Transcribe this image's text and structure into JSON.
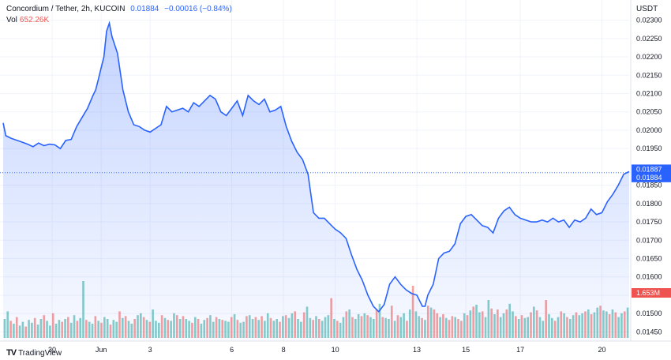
{
  "header": {
    "pair": "Concordium / Tether, 2h, KUCOIN",
    "price": "0.01884",
    "change": "−0.00016 (−0.84%)",
    "vol_label": "Vol",
    "vol_value": "652.26K"
  },
  "unit": "USDT",
  "brand": "TradingView",
  "colors": {
    "line": "#2962ff",
    "up_vol": "#26a69a",
    "down_vol": "#ef5350",
    "price_tag": "#2962ff",
    "vol_tag": "#ef5350"
  },
  "chart_data": {
    "type": "area",
    "y_ticks": [
      "0.02300",
      "0.02250",
      "0.02200",
      "0.02150",
      "0.02100",
      "0.02050",
      "0.02000",
      "0.01950",
      "0.01850",
      "0.01800",
      "0.01750",
      "0.01700",
      "0.01650",
      "0.01600",
      "0.01550",
      "0.01500",
      "0.01450"
    ],
    "ylim": [
      0.01425,
      0.02325
    ],
    "x_ticks": [
      "30",
      "Jun",
      "3",
      "6",
      "8",
      "10",
      "13",
      "15",
      "17",
      "20"
    ],
    "x_tick_pos": [
      1.8,
      3.6,
      5.4,
      8.4,
      10.3,
      12.2,
      15.2,
      17,
      19,
      22
    ],
    "xlim": [
      0,
      23
    ],
    "price_labels": [
      "0.01887",
      "0.01884"
    ],
    "vol_label": "1.653M",
    "series": [
      {
        "name": "Concordium / Tether",
        "x": [
          0,
          0.1,
          0.3,
          0.6,
          0.9,
          1.1,
          1.3,
          1.5,
          1.7,
          1.9,
          2.1,
          2.3,
          2.5,
          2.7,
          2.9,
          3.1,
          3.3,
          3.4,
          3.5,
          3.6,
          3.7,
          3.8,
          3.9,
          4.0,
          4.2,
          4.4,
          4.6,
          4.8,
          5.0,
          5.2,
          5.4,
          5.6,
          5.8,
          6.0,
          6.2,
          6.4,
          6.6,
          6.8,
          7.0,
          7.2,
          7.4,
          7.6,
          7.8,
          8.0,
          8.2,
          8.4,
          8.6,
          8.8,
          9.0,
          9.2,
          9.4,
          9.6,
          9.8,
          10.0,
          10.2,
          10.4,
          10.6,
          10.8,
          11.0,
          11.2,
          11.4,
          11.6,
          11.8,
          12.0,
          12.2,
          12.4,
          12.6,
          12.8,
          13.0,
          13.2,
          13.4,
          13.6,
          13.8,
          14.0,
          14.2,
          14.4,
          14.6,
          14.8,
          15.0,
          15.2,
          15.4,
          15.5,
          15.6,
          15.8,
          16.0,
          16.2,
          16.4,
          16.6,
          16.8,
          17.0,
          17.2,
          17.4,
          17.6,
          17.8,
          18.0,
          18.2,
          18.4,
          18.6,
          18.8,
          19.0,
          19.2,
          19.4,
          19.6,
          19.8,
          20.0,
          20.2,
          20.4,
          20.6,
          20.8,
          21.0,
          21.2,
          21.4,
          21.6,
          21.8,
          22.0,
          22.2,
          22.4,
          22.6,
          22.8,
          23.0
        ],
        "y": [
          0.0202,
          0.01985,
          0.01978,
          0.0197,
          0.01962,
          0.01955,
          0.01965,
          0.01958,
          0.01962,
          0.0196,
          0.0195,
          0.01972,
          0.01975,
          0.0201,
          0.02035,
          0.0206,
          0.02095,
          0.0211,
          0.0214,
          0.0217,
          0.022,
          0.0227,
          0.02292,
          0.02255,
          0.0221,
          0.0211,
          0.0205,
          0.02015,
          0.0201,
          0.02,
          0.01995,
          0.02005,
          0.02015,
          0.02065,
          0.0205,
          0.02055,
          0.0206,
          0.0205,
          0.02075,
          0.02065,
          0.0208,
          0.02095,
          0.02085,
          0.0205,
          0.0204,
          0.0206,
          0.0208,
          0.0204,
          0.02095,
          0.0208,
          0.0207,
          0.02085,
          0.0205,
          0.02055,
          0.02065,
          0.0201,
          0.0197,
          0.0194,
          0.0192,
          0.0188,
          0.01775,
          0.0176,
          0.0176,
          0.01745,
          0.0173,
          0.0172,
          0.01705,
          0.0166,
          0.0162,
          0.0159,
          0.0155,
          0.0152,
          0.01505,
          0.01525,
          0.0158,
          0.016,
          0.0158,
          0.01565,
          0.01555,
          0.0155,
          0.0152,
          0.0152,
          0.0155,
          0.0158,
          0.0165,
          0.01665,
          0.0167,
          0.0169,
          0.01745,
          0.01765,
          0.0177,
          0.01755,
          0.0174,
          0.01735,
          0.0172,
          0.0176,
          0.0178,
          0.0179,
          0.0177,
          0.0176,
          0.01755,
          0.0175,
          0.0175,
          0.01755,
          0.0175,
          0.0176,
          0.0175,
          0.01755,
          0.01735,
          0.01755,
          0.0175,
          0.0176,
          0.01785,
          0.0177,
          0.01775,
          0.01805,
          0.01825,
          0.0185,
          0.0188,
          0.01887
        ]
      }
    ],
    "volume": {
      "values": [
        0.2,
        0.28,
        0.18,
        0.15,
        0.22,
        0.13,
        0.17,
        0.12,
        0.19,
        0.16,
        0.21,
        0.14,
        0.2,
        0.24,
        0.18,
        0.13,
        0.26,
        0.15,
        0.19,
        0.17,
        0.2,
        0.22,
        0.16,
        0.24,
        0.18,
        0.21,
        0.6,
        0.19,
        0.17,
        0.15,
        0.23,
        0.18,
        0.16,
        0.22,
        0.2,
        0.14,
        0.19,
        0.17,
        0.28,
        0.21,
        0.23,
        0.18,
        0.15,
        0.2,
        0.24,
        0.26,
        0.22,
        0.19,
        0.17,
        0.3,
        0.18,
        0.16,
        0.24,
        0.21,
        0.19,
        0.18,
        0.26,
        0.24,
        0.2,
        0.23,
        0.2,
        0.18,
        0.16,
        0.22,
        0.2,
        0.15,
        0.19,
        0.21,
        0.24,
        0.17,
        0.22,
        0.2,
        0.19,
        0.18,
        0.17,
        0.22,
        0.25,
        0.19,
        0.16,
        0.17,
        0.23,
        0.24,
        0.2,
        0.22,
        0.19,
        0.23,
        0.18,
        0.26,
        0.21,
        0.18,
        0.2,
        0.17,
        0.23,
        0.24,
        0.21,
        0.26,
        0.28,
        0.2,
        0.17,
        0.27,
        0.33,
        0.21,
        0.19,
        0.23,
        0.2,
        0.18,
        0.22,
        0.24,
        0.42,
        0.2,
        0.18,
        0.16,
        0.22,
        0.28,
        0.3,
        0.22,
        0.2,
        0.25,
        0.23,
        0.26,
        0.24,
        0.22,
        0.2,
        0.3,
        0.36,
        0.22,
        0.21,
        0.2,
        0.34,
        0.18,
        0.24,
        0.22,
        0.26,
        0.18,
        0.3,
        0.55,
        0.28,
        0.23,
        0.21,
        0.19,
        0.34,
        0.32,
        0.3,
        0.26,
        0.22,
        0.25,
        0.21,
        0.19,
        0.23,
        0.22,
        0.2,
        0.18,
        0.26,
        0.24,
        0.29,
        0.33,
        0.35,
        0.27,
        0.28,
        0.22,
        0.4,
        0.31,
        0.25,
        0.3,
        0.22,
        0.26,
        0.3,
        0.36,
        0.28,
        0.23,
        0.2,
        0.24,
        0.21,
        0.22,
        0.27,
        0.33,
        0.29,
        0.22,
        0.18,
        0.4,
        0.25,
        0.21,
        0.18,
        0.22,
        0.28,
        0.26,
        0.22,
        0.2,
        0.24,
        0.27,
        0.24,
        0.26,
        0.28,
        0.3,
        0.25,
        0.27,
        0.32,
        0.34,
        0.29,
        0.28,
        0.25,
        0.3,
        0.27,
        0.22,
        0.26,
        0.28,
        0.32
      ],
      "up": [
        1,
        1,
        0,
        1,
        0,
        1,
        1,
        0,
        1,
        1,
        0,
        1,
        1,
        0,
        1,
        1,
        0,
        1,
        1,
        0,
        1,
        0,
        1,
        1,
        0,
        1,
        1,
        0,
        1,
        1,
        0,
        1,
        0,
        1,
        1,
        0,
        1,
        1,
        0,
        1,
        0,
        1,
        1,
        0,
        1,
        1,
        0,
        1,
        0,
        1,
        1,
        1,
        0,
        1,
        0,
        1,
        1,
        0,
        1,
        0,
        1,
        1,
        0,
        1,
        0,
        1,
        1,
        0,
        1,
        1,
        0,
        1,
        0,
        1,
        1,
        0,
        1,
        0,
        1,
        1,
        0,
        1,
        1,
        0,
        1,
        0,
        1,
        1,
        0,
        1,
        1,
        0,
        1,
        0,
        1,
        1,
        0,
        1,
        1,
        0,
        1,
        1,
        0,
        1,
        0,
        1,
        1,
        1,
        0,
        1,
        0,
        1,
        1,
        0,
        1,
        0,
        1,
        1,
        0,
        1,
        0,
        1,
        1,
        0,
        1,
        0,
        1,
        1,
        0,
        1,
        0,
        1,
        1,
        0,
        1,
        0,
        1,
        1,
        0,
        1,
        0,
        1,
        0,
        0,
        1,
        0,
        1,
        0,
        0,
        1,
        0,
        0,
        1,
        0,
        1,
        0,
        1,
        1,
        0,
        1,
        1,
        0,
        1,
        0,
        1,
        1,
        0,
        1,
        1,
        0,
        1,
        0,
        1,
        1,
        0,
        1,
        0,
        1,
        1,
        0,
        1,
        1,
        0,
        1,
        0,
        1,
        0,
        1,
        1,
        0,
        1,
        1,
        0,
        1,
        0,
        1,
        1,
        0,
        1,
        1,
        0,
        1,
        0,
        1,
        1,
        0,
        1,
        0
      ]
    }
  }
}
